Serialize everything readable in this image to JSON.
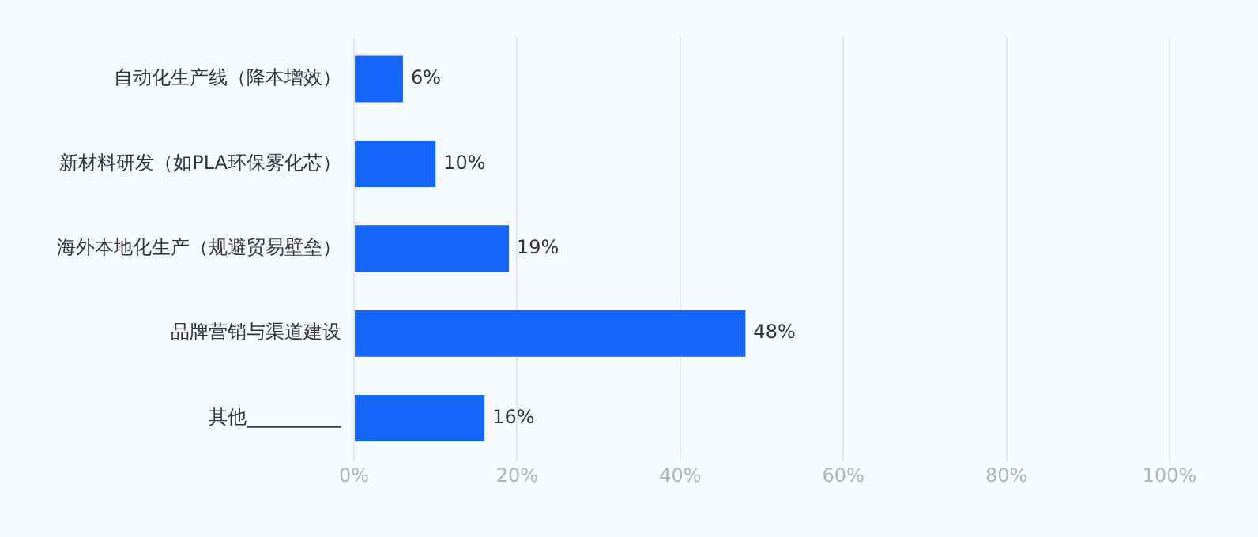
{
  "chart_data": {
    "type": "bar",
    "orientation": "horizontal",
    "categories": [
      "自动化生产线（降本增效）",
      "新材料研发（如PLA环保雾化芯）",
      "海外本地化生产（规避贸易壁垒）",
      "品牌营销与渠道建设",
      "其他__________"
    ],
    "values": [
      6,
      10,
      19,
      48,
      16
    ],
    "value_labels": [
      "6%",
      "10%",
      "19%",
      "48%",
      "16%"
    ],
    "color": "#1466ff",
    "xlim": [
      0,
      100
    ],
    "xticks": [
      {
        "value": 0,
        "label": "0%"
      },
      {
        "value": 20,
        "label": "20%"
      },
      {
        "value": 40,
        "label": "40%"
      },
      {
        "value": 60,
        "label": "60%"
      },
      {
        "value": 80,
        "label": "80%"
      },
      {
        "value": 100,
        "label": "100%"
      }
    ],
    "grid": "x",
    "legend": false
  }
}
